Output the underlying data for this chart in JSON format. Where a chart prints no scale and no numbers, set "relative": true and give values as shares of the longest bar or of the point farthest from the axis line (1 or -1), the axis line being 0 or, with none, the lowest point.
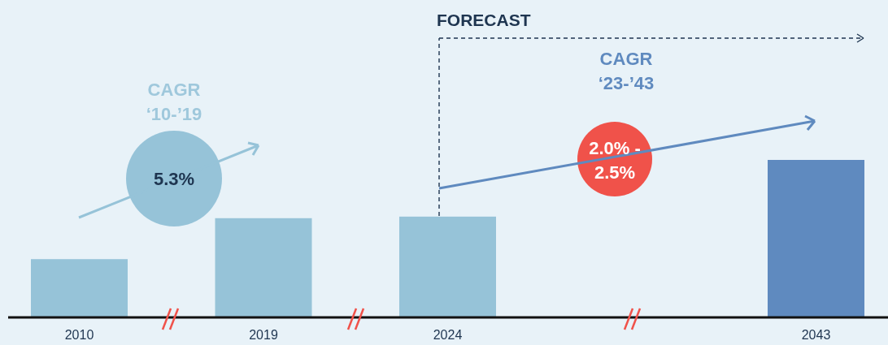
{
  "chart_data": {
    "type": "bar",
    "relative": true,
    "categories": [
      "2010",
      "2019",
      "2024",
      null,
      "2043"
    ],
    "values": [
      0.37,
      0.63,
      0.64,
      null,
      1
    ],
    "colors": [
      "#96c3d8",
      "#96c3d8",
      "#96c3d8",
      null,
      "#5f8abf"
    ],
    "annotations": [
      "FORECAST",
      "CAGR ‘10-’19",
      "5.3%",
      "CAGR ‘23-’43",
      "2.0% - 2.5%"
    ]
  }
}
